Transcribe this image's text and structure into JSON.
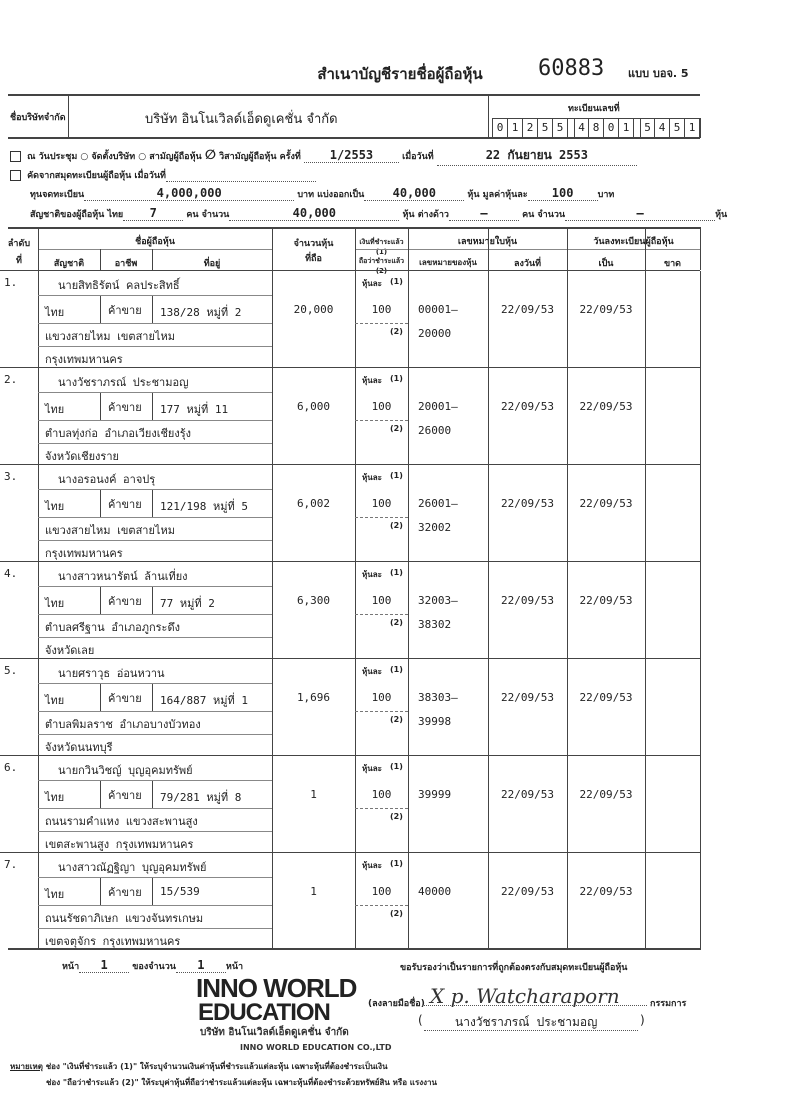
{
  "header": {
    "title": "สำเนาบัญชีรายชื่อผู้ถือหุ้น",
    "form_number": "60883",
    "form_type": "แบบ บอจ. 5"
  },
  "company": {
    "label": "ชื่อบริษัทจำกัด",
    "name": "บริษัท อินโนเวิลด์เอ็ดดูเคชั่น จำกัด",
    "reg_label": "ทะเบียนเลขที่",
    "reg_digits": [
      "0",
      "1",
      "2",
      "5",
      "5",
      "4",
      "8",
      "0",
      "1",
      "5",
      "4",
      "5",
      "1"
    ]
  },
  "meeting": {
    "checked_mark": "/",
    "at_label": "ณ วันประชุม",
    "opt1": "จัดตั้งบริษัท",
    "opt2": "สามัญผู้ถือหุ้น",
    "opt3_mark": "∅",
    "opt3": "วิสามัญผู้ถือหุ้น",
    "time_label": "ครั้งที่",
    "time": "1/2553",
    "date_label": "เมื่อวันที่",
    "date": "22 กันยายน 2553"
  },
  "copy": {
    "label": "คัดจากสมุดทะเบียนผู้ถือหุ้น เมื่อวันที่"
  },
  "capital": {
    "label": "ทุนจดทะเบียน",
    "value": "4,000,000",
    "baht_label": "บาท แบ่งออกเป็น",
    "shares": "40,000",
    "par_label": "หุ้น มูลค่าหุ้นละ",
    "par": "100",
    "baht": "บาท"
  },
  "nationality": {
    "label": "สัญชาติของผู้ถือหุ้น ไทย",
    "thai_count": "7",
    "person_label": "คน จำนวน",
    "thai_shares": "40,000",
    "share_label": "หุ้น ต่างด้าว",
    "foreign_count": "–",
    "person_label2": "คน จำนวน",
    "foreign_shares": "–",
    "share_label2": "หุ้น"
  },
  "table_header": {
    "order": "ลำดับ",
    "order2": "ที่",
    "name": "ชื่อผู้ถือหุ้น",
    "nat": "สัญชาติ",
    "occ": "อาชีพ",
    "addr": "ที่อยู่",
    "shares": "จำนวนหุ้น",
    "shares2": "ที่ถือ",
    "paid1": "เงินที่ชำระแล้ว (1)",
    "paid2": "ถือว่าชำระแล้ว (2)",
    "cert": "เลขหมายใบหุ้น",
    "cert_no": "เลขหมายของหุ้น",
    "cert_date": "ลงวันที่",
    "reg": "วันลงทะเบียนผู้ถือหุ้น",
    "reg_from": "เป็น",
    "reg_to": "ขาด"
  },
  "per_share_label": "หุ้นละ",
  "paid_mark1": "(1)",
  "paid_mark2": "(2)",
  "shareholders": [
    {
      "no": "1.",
      "name": "นายสิทธิรัตน์ คลประสิทธิ์",
      "nat": "ไทย",
      "occ": "ค้าขาย",
      "addr": "138/28 หมู่ที่ 2",
      "addr2": "แขวงสายไหม เขตสายไหม",
      "addr3": "กรุงเทพมหานคร",
      "shares": "20,000",
      "paid": "100",
      "cert_from": "00001–",
      "cert_to": "20000",
      "cert_date": "22/09/53",
      "reg_from": "22/09/53"
    },
    {
      "no": "2.",
      "name": "นางวัชราภรณ์ ประชามอญ",
      "nat": "ไทย",
      "occ": "ค้าขาย",
      "addr": "177 หมู่ที่ 11",
      "addr2": "ตำบลทุ่งก่อ อำเภอเวียงเชียงรุ้ง",
      "addr3": "จังหวัดเชียงราย",
      "shares": "6,000",
      "paid": "100",
      "cert_from": "20001–",
      "cert_to": "26000",
      "cert_date": "22/09/53",
      "reg_from": "22/09/53"
    },
    {
      "no": "3.",
      "name": "นางอรอนงค์ อาจปรุ",
      "nat": "ไทย",
      "occ": "ค้าขาย",
      "addr": "121/198 หมู่ที่ 5",
      "addr2": "แขวงสายไหม เขตสายไหม",
      "addr3": "กรุงเทพมหานคร",
      "shares": "6,002",
      "paid": "100",
      "cert_from": "26001–",
      "cert_to": "32002",
      "cert_date": "22/09/53",
      "reg_from": "22/09/53"
    },
    {
      "no": "4.",
      "name": "นางสาวหนารัตน์ ล้านเที่ยง",
      "nat": "ไทย",
      "occ": "ค้าขาย",
      "addr": "77 หมู่ที่ 2",
      "addr2": "ตำบลศรีฐาน อำเภอภูกระดึง",
      "addr3": "จังหวัดเลย",
      "shares": "6,300",
      "paid": "100",
      "cert_from": "32003–",
      "cert_to": "38302",
      "cert_date": "22/09/53",
      "reg_from": "22/09/53"
    },
    {
      "no": "5.",
      "name": "นายศราวุธ อ่อนหวาน",
      "nat": "ไทย",
      "occ": "ค้าขาย",
      "addr": "164/887 หมู่ที่ 1",
      "addr2": "ตำบลพิมลราช อำเภอบางบัวทอง",
      "addr3": "จังหวัดนนทบุรี",
      "shares": "1,696",
      "paid": "100",
      "cert_from": "38303–",
      "cert_to": "39998",
      "cert_date": "22/09/53",
      "reg_from": "22/09/53"
    },
    {
      "no": "6.",
      "name": "นายกวินวิชญ์ บุญอุคมทรัพย์",
      "nat": "ไทย",
      "occ": "ค้าขาย",
      "addr": "79/281 หมู่ที่ 8",
      "addr2": "ถนนรามคำแหง แขวงสะพานสูง",
      "addr3": "เขตสะพานสูง กรุงเทพมหานคร",
      "shares": "1",
      "paid": "100",
      "cert_from": "39999",
      "cert_to": "",
      "cert_date": "22/09/53",
      "reg_from": "22/09/53"
    },
    {
      "no": "7.",
      "name": "นางสาวณัฏฐิญา บุญอุคมทรัพย์",
      "nat": "ไทย",
      "occ": "ค้าขาย",
      "addr": "15/539",
      "addr2": "ถนนรัชดาภิเษก แขวงจันทรเกษม",
      "addr3": "เขตจตุจักร กรุงเทพมหานคร",
      "shares": "1",
      "paid": "100",
      "cert_from": "40000",
      "cert_to": "",
      "cert_date": "22/09/53",
      "reg_from": "22/09/53"
    }
  ],
  "footer": {
    "page_label": "หน้า",
    "page": "1",
    "of_label": "ของจำนวน",
    "total": "1",
    "page_label2": "หน้า",
    "certify": "ขอรับรองว่าเป็นรายการที่ถูกต้องตรงกับสมุดทะเบียนผู้ถือหุ้น",
    "sign_label": "(ลงลายมือชื่อ)",
    "signature": "X p. Watcharaporn",
    "role": "กรรมการ",
    "signer": "นางวัชราภรณ์ ประชามอญ",
    "logo_line1": "INNO WORLD",
    "logo_line2": "EDUCATION",
    "stamp_th": "บริษัท อินโนเวิลด์เอ็ดดูเคชั่น จำกัด",
    "stamp_en": "INNO WORLD EDUCATION CO.,LTD",
    "note_label": "หมายเหตุ",
    "note1": "ช่อง \"เงินที่ชำระแล้ว (1)\" ให้ระบุจำนวนเงินค่าหุ้นที่ชำระแล้วแต่ละหุ้น เฉพาะหุ้นที่ต้องชำระเป็นเงิน",
    "note2": "ช่อง \"ถือว่าชำระแล้ว (2)\" ให้ระบุค่าหุ้นที่ถือว่าชำระแล้วแต่ละหุ้น เฉพาะหุ้นที่ต้องชำระด้วยทรัพย์สิน หรือ แรงงาน"
  }
}
